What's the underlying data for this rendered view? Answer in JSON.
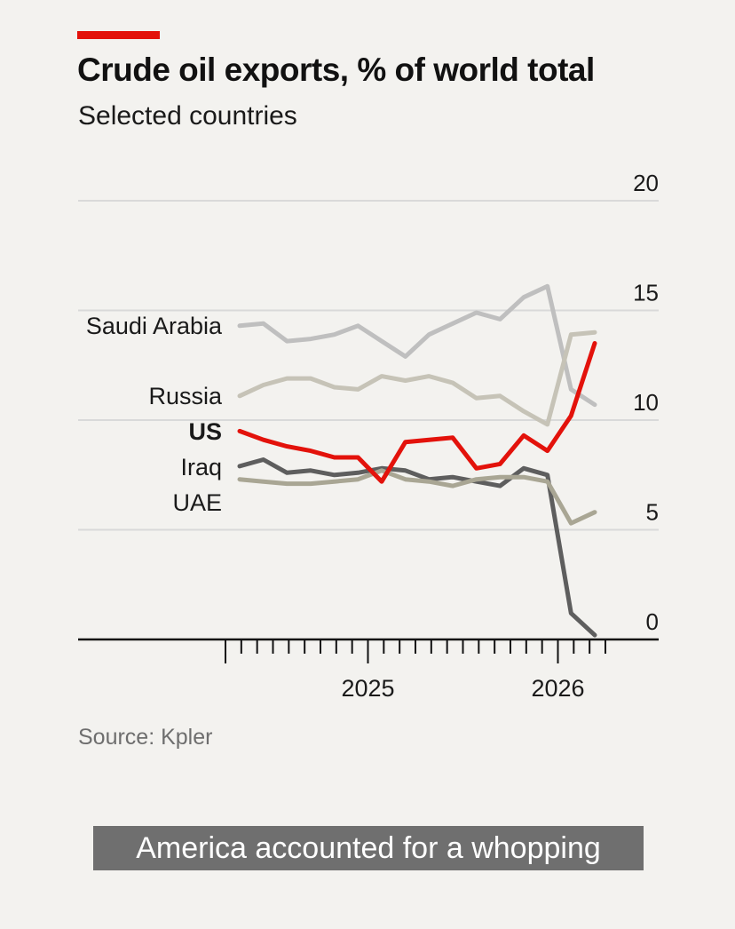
{
  "colors": {
    "accent": "#e3120b",
    "background": "#f3f2ef",
    "grid": "#d9d9d9",
    "axis": "#111111"
  },
  "header": {
    "title": "Crude oil exports, % of world total",
    "subtitle": "Selected countries"
  },
  "footer": {
    "source": "Source: Kpler",
    "caption": "America accounted for a whopping"
  },
  "chart_data": {
    "type": "line",
    "title": "Crude oil exports, % of world total",
    "subtitle": "Selected countries",
    "ylim": [
      0,
      20
    ],
    "yticks": [
      0,
      5,
      10,
      15,
      20
    ],
    "ytick_labels": [
      "0",
      "5",
      "10",
      "15",
      "20"
    ],
    "y_axis_side": "right",
    "grid": "horizontal",
    "xlim": [
      2024.25,
      2026.25
    ],
    "x_tick_labels": [
      {
        "value": 2025,
        "label": "2025"
      },
      {
        "value": 2026,
        "label": "2026"
      }
    ],
    "legend": "labels at left of lines",
    "series": [
      {
        "name": "Saudi Arabia",
        "color": "#bfbfbf",
        "emphasis": false,
        "values": [
          14.3,
          14.4,
          13.6,
          13.7,
          13.9,
          14.3,
          13.6,
          12.9,
          13.9,
          14.4,
          14.9,
          14.6,
          15.6,
          16.1,
          11.4,
          10.7
        ]
      },
      {
        "name": "Russia",
        "color": "#c6c3b7",
        "emphasis": false,
        "values": [
          11.1,
          11.6,
          11.9,
          11.9,
          11.5,
          11.4,
          12.0,
          11.8,
          12.0,
          11.7,
          11.0,
          11.1,
          10.4,
          9.8,
          13.9,
          14.0
        ]
      },
      {
        "name": "US",
        "color": "#e3120b",
        "emphasis": true,
        "values": [
          9.5,
          9.1,
          8.8,
          8.6,
          8.3,
          8.3,
          7.2,
          9.0,
          9.1,
          9.2,
          7.8,
          8.0,
          9.3,
          8.6,
          10.2,
          13.5
        ]
      },
      {
        "name": "Iraq",
        "color": "#5e5e5e",
        "emphasis": false,
        "values": [
          7.9,
          8.2,
          7.6,
          7.7,
          7.5,
          7.6,
          7.8,
          7.7,
          7.3,
          7.4,
          7.2,
          7.0,
          7.8,
          7.5,
          1.2,
          0.2
        ]
      },
      {
        "name": "UAE",
        "color": "#a9a694",
        "emphasis": false,
        "values": [
          7.3,
          7.2,
          7.1,
          7.1,
          7.2,
          7.3,
          7.7,
          7.3,
          7.2,
          7.0,
          7.3,
          7.4,
          7.4,
          7.2,
          5.3,
          5.8
        ]
      }
    ]
  }
}
